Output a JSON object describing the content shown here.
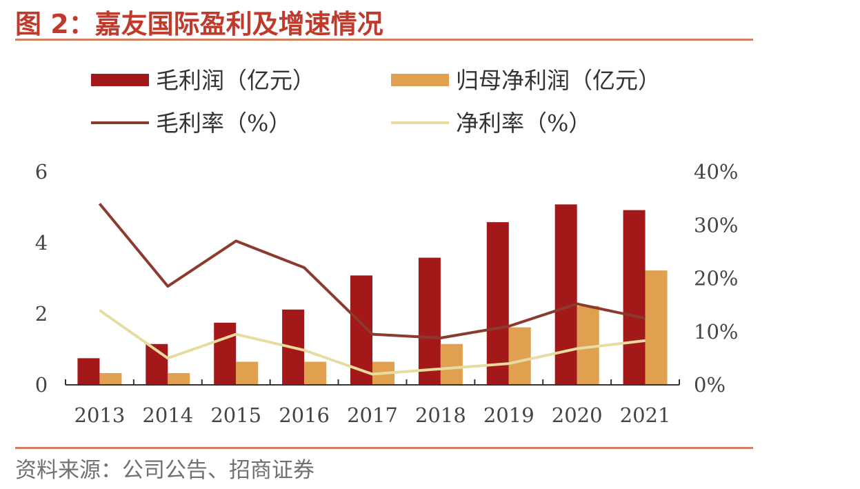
{
  "title": "图 2：嘉友国际盈利及增速情况",
  "source": "资料来源：公司公告、招商证券",
  "chart_data": {
    "type": "bar",
    "title": "图 2：嘉友国际盈利及增速情况",
    "categories": [
      "2013",
      "2014",
      "2015",
      "2016",
      "2017",
      "2018",
      "2019",
      "2020",
      "2021"
    ],
    "series": [
      {
        "name": "毛利润（亿元）",
        "kind": "bar",
        "axis": "left",
        "color": "#A31818",
        "values": [
          0.75,
          1.15,
          1.75,
          2.12,
          3.08,
          3.58,
          4.58,
          5.08,
          4.92
        ]
      },
      {
        "name": "归母净利润（亿元）",
        "kind": "bar",
        "axis": "left",
        "color": "#E0A050",
        "values": [
          0.33,
          0.33,
          0.65,
          0.65,
          0.65,
          1.15,
          1.62,
          2.22,
          3.22
        ]
      },
      {
        "name": "毛利率（%）",
        "kind": "line",
        "axis": "right",
        "color": "#8B3A2E",
        "values": [
          34.0,
          18.5,
          27.0,
          22.0,
          9.5,
          8.8,
          11.0,
          15.2,
          12.5
        ]
      },
      {
        "name": "净利率（%）",
        "kind": "line",
        "axis": "right",
        "color": "#E8DBA0",
        "values": [
          14.0,
          5.0,
          9.5,
          6.5,
          2.0,
          3.0,
          4.0,
          6.8,
          8.3
        ]
      }
    ],
    "y_left": {
      "ylim": [
        0,
        6
      ],
      "ticks": [
        0,
        2,
        4,
        6
      ],
      "tick_labels": [
        "0",
        "2",
        "4",
        "6"
      ]
    },
    "y_right": {
      "ylim": [
        0,
        40
      ],
      "ticks": [
        0,
        10,
        20,
        30,
        40
      ],
      "tick_labels": [
        "0%",
        "10%",
        "20%",
        "30%",
        "40%"
      ]
    },
    "legend": {
      "placement": "top",
      "columns": 2
    },
    "grid": false
  }
}
